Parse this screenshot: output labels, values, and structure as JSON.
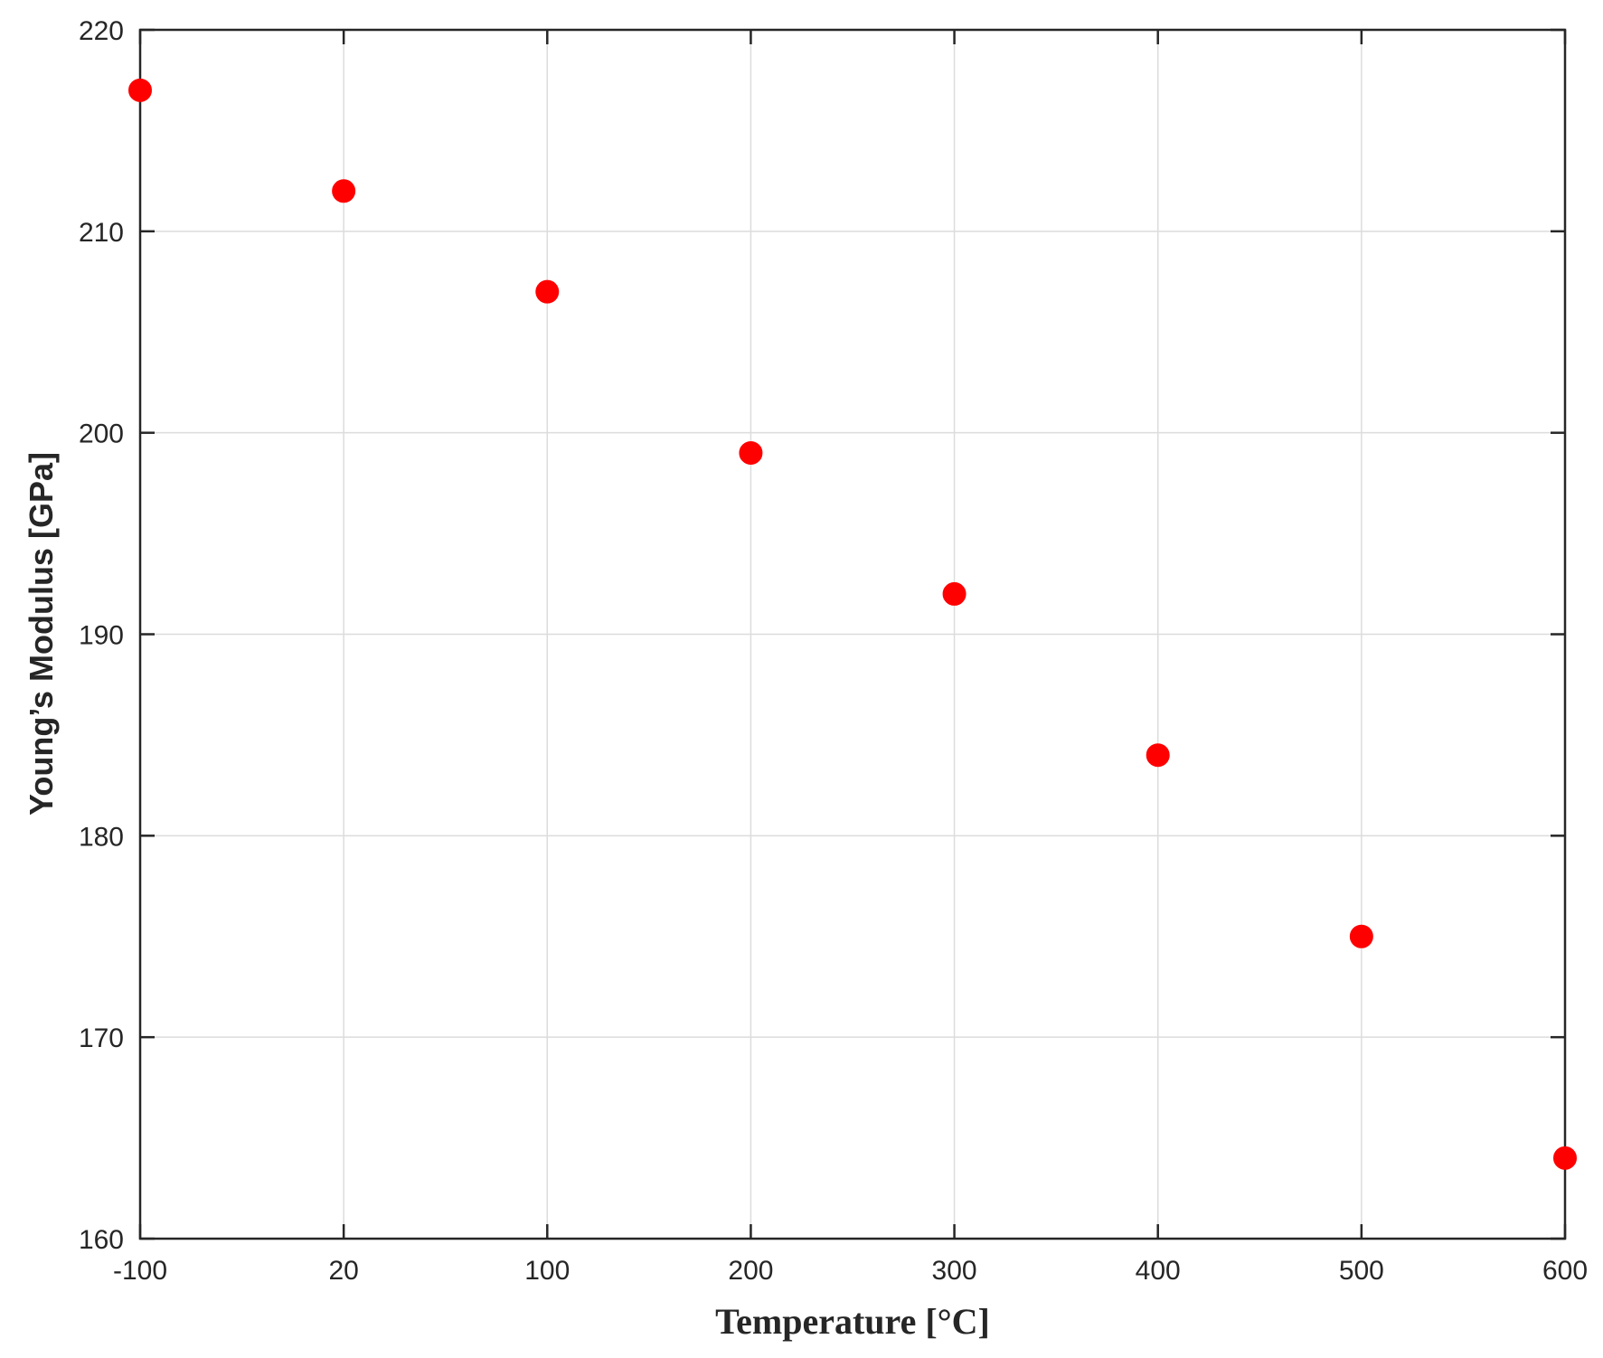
{
  "chart_data": {
    "type": "scatter",
    "title": "",
    "xlabel": "Temperature [°C]",
    "ylabel": "Young’s Modulus [GPa]",
    "x_tick_labels": [
      "-100",
      "20",
      "100",
      "200",
      "300",
      "400",
      "500",
      "600"
    ],
    "y_ticks": [
      160,
      170,
      180,
      190,
      200,
      210,
      220
    ],
    "ylim": [
      160,
      220
    ],
    "x_scale": "categorical (evenly spaced tick labels)",
    "grid": true,
    "marker_color": "#ff0000",
    "series": [
      {
        "x": [
          -100,
          20,
          100,
          200,
          300,
          400,
          500,
          600
        ],
        "y": [
          217,
          212,
          207,
          199,
          192,
          184,
          175,
          164
        ]
      }
    ]
  }
}
